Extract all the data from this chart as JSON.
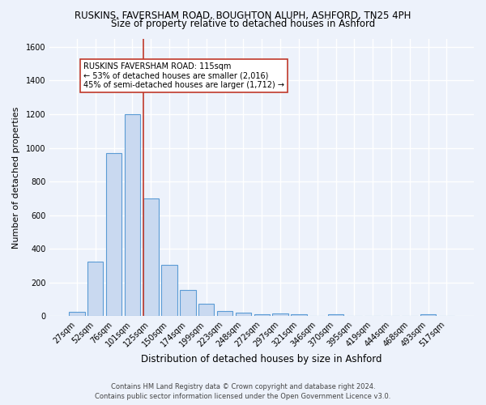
{
  "title": "RUSKINS, FAVERSHAM ROAD, BOUGHTON ALUPH, ASHFORD, TN25 4PH",
  "subtitle": "Size of property relative to detached houses in Ashford",
  "xlabel": "Distribution of detached houses by size in Ashford",
  "ylabel": "Number of detached properties",
  "footer_line1": "Contains HM Land Registry data © Crown copyright and database right 2024.",
  "footer_line2": "Contains public sector information licensed under the Open Government Licence v3.0.",
  "bar_labels": [
    "27sqm",
    "52sqm",
    "76sqm",
    "101sqm",
    "125sqm",
    "150sqm",
    "174sqm",
    "199sqm",
    "223sqm",
    "248sqm",
    "272sqm",
    "297sqm",
    "321sqm",
    "346sqm",
    "370sqm",
    "395sqm",
    "419sqm",
    "444sqm",
    "468sqm",
    "493sqm",
    "517sqm"
  ],
  "bar_values": [
    25,
    325,
    970,
    1200,
    700,
    305,
    155,
    75,
    30,
    20,
    10,
    15,
    10,
    0,
    10,
    0,
    0,
    0,
    0,
    10,
    0
  ],
  "bar_color": "#c9d9f0",
  "bar_edgecolor": "#5b9bd5",
  "background_color": "#edf2fb",
  "grid_color": "#ffffff",
  "property_line_color": "#c0392b",
  "annotation_line1": "RUSKINS FAVERSHAM ROAD: 115sqm",
  "annotation_line2": "← 53% of detached houses are smaller (2,016)",
  "annotation_line3": "45% of semi-detached houses are larger (1,712) →",
  "annotation_box_edgecolor": "#c0392b",
  "annotation_box_facecolor": "#ffffff",
  "ylim": [
    0,
    1650
  ],
  "yticks": [
    0,
    200,
    400,
    600,
    800,
    1000,
    1200,
    1400,
    1600
  ],
  "title_fontsize": 8.5,
  "subtitle_fontsize": 8.5,
  "xlabel_fontsize": 8.5,
  "ylabel_fontsize": 8,
  "tick_fontsize": 7,
  "annotation_fontsize": 7,
  "footer_fontsize": 6
}
